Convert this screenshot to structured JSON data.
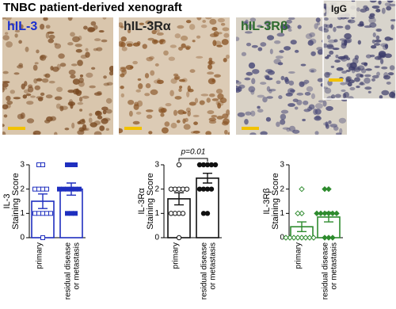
{
  "figure": {
    "title": "TNBC patient-derived xenograft",
    "panels": [
      {
        "label": "hIL-3"
      },
      {
        "label": "hIL-3Rα"
      },
      {
        "label": "hIL-3Rβ"
      },
      {
        "label": "IgG"
      }
    ]
  },
  "chart_data": [
    {
      "type": "bar",
      "ylabel": [
        "IL-3",
        "Staining Score"
      ],
      "categories": [
        [
          "primary"
        ],
        [
          "residual disease",
          "or metastasis"
        ]
      ],
      "values": [
        1.5,
        2.0
      ],
      "errors": [
        0.3,
        0.25
      ],
      "points": [
        [
          3,
          3,
          2,
          2,
          2,
          2,
          1,
          1,
          1,
          1,
          1,
          0
        ],
        [
          3,
          3,
          3,
          2,
          2,
          2,
          2,
          2,
          2,
          1,
          1,
          1
        ]
      ],
      "color": "#1f2fbf",
      "marker": "square",
      "ylim": [
        0,
        3
      ],
      "yticks": [
        0,
        1,
        2,
        3
      ]
    },
    {
      "type": "bar",
      "ylabel": [
        "IL-3Rα",
        "Staining Score"
      ],
      "categories": [
        [
          "primary"
        ],
        [
          "residual disease",
          "or metastasis"
        ]
      ],
      "values": [
        1.6,
        2.45
      ],
      "errors": [
        0.25,
        0.2
      ],
      "points": [
        [
          3,
          2,
          2,
          2,
          2,
          2,
          1,
          1,
          1,
          1,
          0
        ],
        [
          3,
          3,
          3,
          3,
          3,
          2,
          2,
          2,
          2,
          1,
          1
        ]
      ],
      "color": "#111111",
      "marker": "circle",
      "ylim": [
        0,
        3
      ],
      "yticks": [
        0,
        1,
        2,
        3
      ],
      "annotation": "p=0.01"
    },
    {
      "type": "bar",
      "ylabel": [
        "IL-3Rβ",
        "Staining Score"
      ],
      "categories": [
        [
          "primary"
        ],
        [
          "residual disease",
          "or metastasis"
        ]
      ],
      "values": [
        0.45,
        0.85
      ],
      "errors": [
        0.2,
        0.2
      ],
      "points": [
        [
          2,
          1,
          1,
          0,
          0,
          0,
          0,
          0,
          0,
          0,
          0
        ],
        [
          2,
          2,
          1,
          1,
          1,
          1,
          1,
          1,
          0,
          0,
          0
        ]
      ],
      "color": "#2e8b2e",
      "marker": "diamond",
      "ylim": [
        0,
        3
      ],
      "yticks": [
        0,
        1,
        2,
        3
      ]
    }
  ]
}
